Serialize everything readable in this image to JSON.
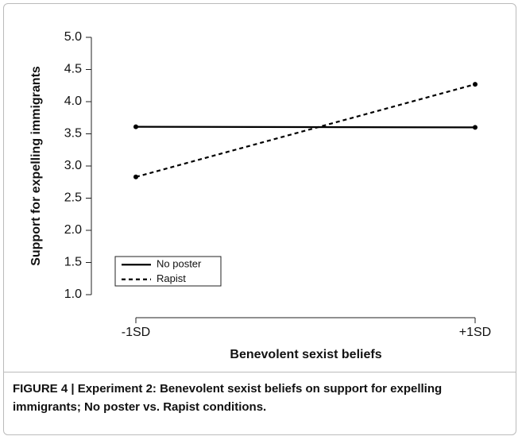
{
  "chart_data": {
    "type": "line",
    "xlabel": "Benevolent sexist beliefs",
    "ylabel": "Support for expelling immigrants",
    "categories": [
      "-1SD",
      "+1SD"
    ],
    "series": [
      {
        "name": "No poster",
        "color": "#000000",
        "linestyle": "solid",
        "values": [
          3.61,
          3.6
        ]
      },
      {
        "name": "Rapist",
        "color": "#000000",
        "linestyle": "dashed",
        "values": [
          2.83,
          4.27
        ]
      }
    ],
    "ylim": [
      1.0,
      5.0
    ],
    "yticks": [
      {
        "value": 1,
        "label": "1.0"
      },
      1.5,
      {
        "value": 2,
        "label": "2.0"
      },
      2.5,
      {
        "value": 3,
        "label": "3.0"
      },
      3.5,
      {
        "value": 4,
        "label": "4.0"
      },
      4.5,
      {
        "value": 5,
        "label": "5.0"
      }
    ],
    "legend": "lower left",
    "caption": "FIGURE 4 | Experiment 2: Benevolent sexist beliefs on support for expelling immigrants; No poster vs. Rapist conditions."
  }
}
